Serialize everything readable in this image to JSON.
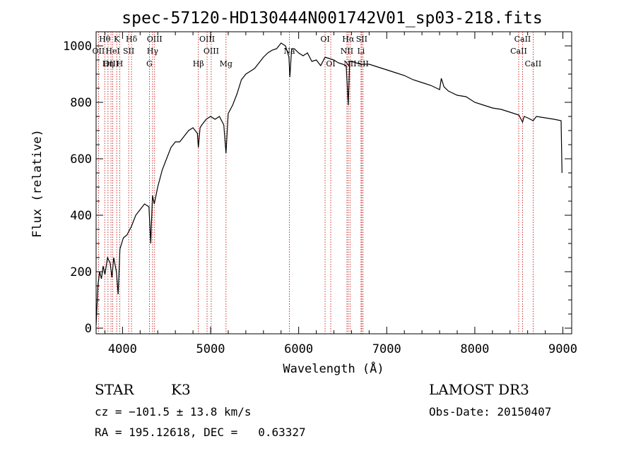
{
  "chart_data": {
    "type": "line",
    "title": "spec-57120-HD130444N001742V01_sp03-218.fits",
    "xlabel": "Wavelength (Å)",
    "ylabel": "Flux (relative)",
    "xlim": [
      3700,
      9100
    ],
    "ylim": [
      -20,
      1050
    ],
    "x_ticks": [
      4000,
      5000,
      6000,
      7000,
      8000,
      9000
    ],
    "y_ticks": [
      0,
      200,
      400,
      600,
      800,
      1000
    ],
    "series": [
      {
        "x": [
          3700,
          3720,
          3740,
          3760,
          3780,
          3800,
          3830,
          3860,
          3880,
          3900,
          3930,
          3950,
          3970,
          3990,
          4010,
          4050,
          4100,
          4150,
          4200,
          4250,
          4300,
          4320,
          4340,
          4360,
          4400,
          4450,
          4500,
          4550,
          4600,
          4650,
          4700,
          4750,
          4800,
          4850,
          4861,
          4880,
          4900,
          4950,
          5000,
          5050,
          5100,
          5150,
          5175,
          5200,
          5250,
          5300,
          5350,
          5400,
          5450,
          5500,
          5550,
          5600,
          5650,
          5700,
          5750,
          5800,
          5850,
          5890,
          5900,
          5920,
          5950,
          6000,
          6050,
          6100,
          6150,
          6200,
          6250,
          6300,
          6350,
          6400,
          6450,
          6500,
          6540,
          6563,
          6580,
          6600,
          6650,
          6700,
          6800,
          6900,
          7000,
          7100,
          7200,
          7300,
          7400,
          7500,
          7600,
          7620,
          7650,
          7700,
          7800,
          7900,
          8000,
          8100,
          8200,
          8300,
          8400,
          8500,
          8542,
          8560,
          8600,
          8662,
          8700,
          8800,
          8900,
          8980,
          8990
        ],
        "y": [
          10,
          150,
          200,
          175,
          220,
          190,
          250,
          230,
          180,
          250,
          200,
          120,
          280,
          300,
          320,
          330,
          360,
          400,
          420,
          440,
          430,
          300,
          470,
          440,
          500,
          560,
          600,
          640,
          660,
          660,
          680,
          700,
          710,
          690,
          640,
          710,
          720,
          740,
          750,
          740,
          750,
          720,
          620,
          760,
          790,
          830,
          880,
          900,
          910,
          920,
          940,
          960,
          975,
          985,
          990,
          1010,
          1000,
          960,
          890,
          990,
          990,
          975,
          965,
          975,
          945,
          950,
          930,
          960,
          955,
          950,
          940,
          935,
          930,
          790,
          945,
          945,
          940,
          935,
          935,
          925,
          915,
          905,
          895,
          880,
          870,
          860,
          845,
          885,
          855,
          840,
          825,
          820,
          800,
          790,
          780,
          775,
          765,
          755,
          730,
          750,
          745,
          735,
          750,
          745,
          740,
          735,
          550
        ]
      }
    ],
    "lines": [
      {
        "label": "Hθ",
        "x": 3798,
        "row": 0
      },
      {
        "label": "OII",
        "x": 3727,
        "row": 1
      },
      {
        "label": "OIII",
        "x": 3869,
        "row": 2
      },
      {
        "label": "K",
        "x": 3934,
        "row": 0
      },
      {
        "label": "HeI",
        "x": 3889,
        "row": 1
      },
      {
        "label": "Hη",
        "x": 3835,
        "row": 2
      },
      {
        "label": "Hδ",
        "x": 4102,
        "row": 0
      },
      {
        "label": "SII",
        "x": 4070,
        "row": 1
      },
      {
        "label": "H",
        "x": 3968,
        "row": 2
      },
      {
        "label": "OIII",
        "x": 4364,
        "row": 0
      },
      {
        "label": "Hγ",
        "x": 4341,
        "row": 1
      },
      {
        "label": "G",
        "x": 4305,
        "row": 2
      },
      {
        "label": "Hβ",
        "x": 4861,
        "row": 2
      },
      {
        "label": "OIII",
        "x": 4960,
        "row": 0
      },
      {
        "label": "OIII",
        "x": 5007,
        "row": 1
      },
      {
        "label": "Mg",
        "x": 5175,
        "row": 2
      },
      {
        "label": "Na",
        "x": 5894,
        "row": 1
      },
      {
        "label": "OI",
        "x": 6300,
        "row": 0
      },
      {
        "label": "OI",
        "x": 6364,
        "row": 2
      },
      {
        "label": "Hα",
        "x": 6563,
        "row": 0
      },
      {
        "label": "NII",
        "x": 6548,
        "row": 1
      },
      {
        "label": "NII",
        "x": 6583,
        "row": 2
      },
      {
        "label": "SII",
        "x": 6716,
        "row": 0
      },
      {
        "label": "Li",
        "x": 6708,
        "row": 1
      },
      {
        "label": "SII",
        "x": 6731,
        "row": 2
      },
      {
        "label": "CaII",
        "x": 8542,
        "row": 0
      },
      {
        "label": "CaII",
        "x": 8498,
        "row": 1
      },
      {
        "label": "CaII",
        "x": 8662,
        "row": 2
      }
    ],
    "grid": false
  },
  "info": {
    "class_label": "STAR",
    "subclass": "K3",
    "survey": "LAMOST DR3",
    "cz": "cz = −101.5 ± 13.8 km/s",
    "obs_date": "Obs-Date: 20150407",
    "radec": "RA = 195.12618, DEC =   0.63327"
  }
}
